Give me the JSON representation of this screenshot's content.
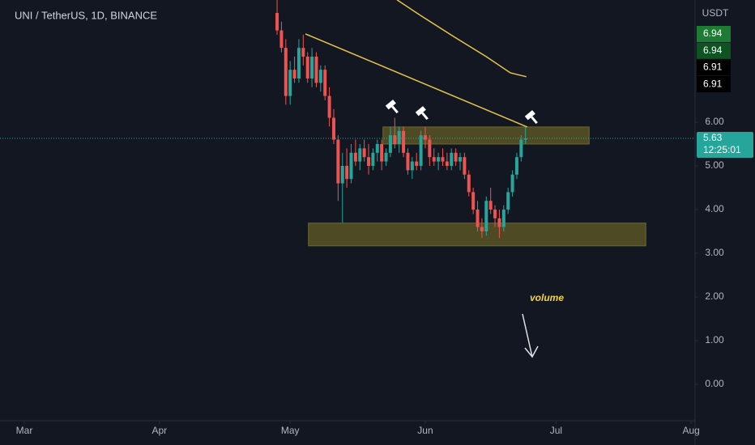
{
  "chart_data": {
    "type": "candlestick",
    "title": "UNI / TetherUS, 1D, BINANCE",
    "currency": "USDT",
    "up_color": "#26a69a",
    "down_color": "#ef5350",
    "x": [
      58,
      59,
      60,
      61,
      62,
      63,
      64,
      65,
      66,
      67,
      68,
      69,
      70,
      71,
      72,
      73,
      74,
      75,
      76,
      77,
      78,
      79,
      80,
      81,
      82,
      83,
      84,
      85,
      86,
      87,
      88,
      89,
      90,
      91,
      92,
      93,
      94,
      95,
      96,
      97,
      98,
      99,
      100,
      101,
      102,
      103,
      104,
      105,
      106,
      107,
      108,
      109,
      110,
      111,
      112,
      113,
      114,
      115
    ],
    "open": [
      8.5,
      8.1,
      7.7,
      6.6,
      7.2,
      7.0,
      7.7,
      7.5,
      7.0,
      7.5,
      6.9,
      7.2,
      6.6,
      6.1,
      5.6,
      4.6,
      5.0,
      4.7,
      5.3,
      5.1,
      5.4,
      5.2,
      5.0,
      5.3,
      5.5,
      5.1,
      5.3,
      5.7,
      5.5,
      5.8,
      5.3,
      4.9,
      5.1,
      5.0,
      5.7,
      5.6,
      5.2,
      5.1,
      5.2,
      5.1,
      5.0,
      5.3,
      5.1,
      5.2,
      4.8,
      4.4,
      4.0,
      3.6,
      3.5,
      4.2,
      4.0,
      3.8,
      3.6,
      4.0,
      4.4,
      4.8,
      5.2,
      5.6
    ],
    "high": [
      8.8,
      8.3,
      7.9,
      7.4,
      7.5,
      7.9,
      8.0,
      7.6,
      7.7,
      7.6,
      7.3,
      7.3,
      6.8,
      6.3,
      5.7,
      5.3,
      5.4,
      5.5,
      5.6,
      5.5,
      5.6,
      5.5,
      5.4,
      5.6,
      5.6,
      5.4,
      5.9,
      6.1,
      5.9,
      5.9,
      5.4,
      5.2,
      5.3,
      5.8,
      5.9,
      5.7,
      5.4,
      5.3,
      5.4,
      5.3,
      5.4,
      5.4,
      5.3,
      5.3,
      4.9,
      4.5,
      4.2,
      3.8,
      4.3,
      4.5,
      4.1,
      4.0,
      4.1,
      4.5,
      4.9,
      5.3,
      5.7,
      5.9
    ],
    "low": [
      8.0,
      7.6,
      6.4,
      6.4,
      6.9,
      6.9,
      7.3,
      6.9,
      6.8,
      6.8,
      6.7,
      6.5,
      5.9,
      5.5,
      4.2,
      3.7,
      4.5,
      4.6,
      5.0,
      4.9,
      5.1,
      4.8,
      4.9,
      5.1,
      4.9,
      5.0,
      5.2,
      5.4,
      5.3,
      5.2,
      4.8,
      4.7,
      4.9,
      4.9,
      5.4,
      5.0,
      5.0,
      4.9,
      5.0,
      4.9,
      4.9,
      5.0,
      4.9,
      4.7,
      4.3,
      3.9,
      3.5,
      3.35,
      3.4,
      3.9,
      3.6,
      3.35,
      3.5,
      3.9,
      4.3,
      4.7,
      5.1,
      5.5
    ],
    "close": [
      8.1,
      7.7,
      6.6,
      7.2,
      7.0,
      7.7,
      7.5,
      7.0,
      7.5,
      6.9,
      7.2,
      6.6,
      6.1,
      5.6,
      4.6,
      5.0,
      4.7,
      5.3,
      5.1,
      5.4,
      5.2,
      5.0,
      5.3,
      5.5,
      5.1,
      5.3,
      5.7,
      5.5,
      5.8,
      5.3,
      4.9,
      5.1,
      5.0,
      5.7,
      5.6,
      5.2,
      5.1,
      5.2,
      5.1,
      5.0,
      5.3,
      5.1,
      5.2,
      4.8,
      4.4,
      4.0,
      3.6,
      3.5,
      4.2,
      4.0,
      3.8,
      3.6,
      4.0,
      4.4,
      4.8,
      5.2,
      5.6,
      5.63
    ],
    "moving_average": {
      "color": "#e8c547",
      "x": [
        85.5,
        91.1,
        98.5,
        106,
        111.5,
        115.2
      ],
      "values": [
        8.8,
        8.43,
        7.96,
        7.5,
        7.13,
        7.04
      ]
    },
    "trendline": {
      "color": "#e8c547",
      "x": [
        64.5,
        115.4
      ],
      "values": [
        8.02,
        5.89
      ]
    },
    "zones": [
      {
        "x": [
          82.3,
          129.6
        ],
        "values": [
          5.5,
          5.89
        ]
      },
      {
        "x": [
          65.2,
          142.6
        ],
        "values": [
          3.17,
          3.69
        ]
      }
    ],
    "countdown": "12:25:01",
    "price_labels": [
      6.94,
      6.94,
      6.91,
      6.91
    ],
    "annotation": "volume",
    "xlim": [
      -5.576,
      153.9
    ],
    "ylim": [
      -0.833,
      8.796
    ],
    "xticks": [
      {
        "value": 0,
        "label": "Mar"
      },
      {
        "value": 31,
        "label": "Apr"
      },
      {
        "value": 61,
        "label": "May"
      },
      {
        "value": 92,
        "label": "Jun"
      },
      {
        "value": 122,
        "label": "Jul"
      },
      {
        "value": 153,
        "label": "Aug"
      }
    ],
    "yticks": [
      {
        "value": 0,
        "label": "0.00"
      },
      {
        "value": 1,
        "label": "1.00"
      },
      {
        "value": 2,
        "label": "2.00"
      },
      {
        "value": 3,
        "label": "3.00"
      },
      {
        "value": 4,
        "label": "4.00"
      },
      {
        "value": 5,
        "label": "5.00"
      },
      {
        "value": 6,
        "label": "6.00"
      }
    ]
  }
}
